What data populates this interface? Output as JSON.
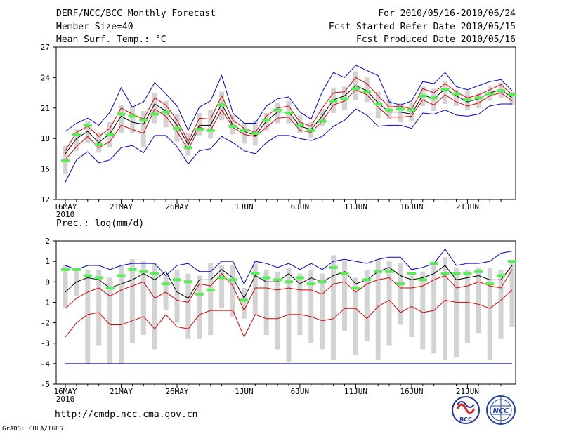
{
  "header": {
    "title": "DERF/NCC/BCC Monthly Forecast",
    "member_size": "Member Size=40",
    "variable": "Mean Surf. Temp.: °C",
    "period": "For 2010/05/16-2010/06/24",
    "started": "Fcst Started Refer Date 2010/05/15",
    "produced": "Fcst Produced Date 2010/05/16"
  },
  "footer": {
    "url": "http://cmdp.ncc.cma.gov.cn",
    "grads": "GrADS: COLA/IGES",
    "logo_bcc": "BCC",
    "logo_ncc": "NCC"
  },
  "colors": {
    "envelope": "#0000dd",
    "inner": "#dd0000",
    "mean": "#000000",
    "box": "#d3d3d3",
    "marker": "#55ee55"
  },
  "chart_data": [
    {
      "type": "line",
      "title": "Mean Surf. Temp.: °C",
      "ylim": [
        12,
        27
      ],
      "yticks": [
        "12",
        "15",
        "18",
        "21",
        "24",
        "27"
      ],
      "xticks": [
        "16MAY",
        "21MAY",
        "26MAY",
        "1JUN",
        "6JUN",
        "11JUN",
        "16JUN",
        "21JUN"
      ],
      "xtick_days": [
        0,
        5,
        10,
        16,
        21,
        26,
        31,
        36
      ],
      "xyear": "2010",
      "days": 40,
      "series": [
        {
          "name": "max",
          "color": "#0000dd",
          "values": [
            18.7,
            19.5,
            20.0,
            19.3,
            20.6,
            23.0,
            21.1,
            21.6,
            23.5,
            22.4,
            21.2,
            18.8,
            21.1,
            21.7,
            24.2,
            20.5,
            19.5,
            19.5,
            21.2,
            21.9,
            22.1,
            20.6,
            19.9,
            22.6,
            24.5,
            24.0,
            25.2,
            24.7,
            24.2,
            21.6,
            21.3,
            21.7,
            23.6,
            23.4,
            24.5,
            23.1,
            22.8,
            23.2,
            23.6,
            23.8,
            22.7
          ]
        },
        {
          "name": "upper",
          "color": "#dd0000",
          "values": [
            16.8,
            18.6,
            19.2,
            18.2,
            19.0,
            21.0,
            20.4,
            19.9,
            22.0,
            21.3,
            19.8,
            17.7,
            20.0,
            19.9,
            22.2,
            19.8,
            19.0,
            18.6,
            20.2,
            21.0,
            21.2,
            19.6,
            19.2,
            21.0,
            22.5,
            22.6,
            24.0,
            23.4,
            22.2,
            21.1,
            21.2,
            20.9,
            22.9,
            22.5,
            23.4,
            22.6,
            22.0,
            22.3,
            22.8,
            23.3,
            22.3
          ]
        },
        {
          "name": "mean",
          "color": "#000000",
          "values": [
            16.5,
            18.0,
            18.7,
            17.6,
            18.5,
            20.2,
            19.6,
            19.4,
            21.4,
            20.7,
            19.3,
            17.4,
            19.3,
            19.3,
            21.4,
            19.3,
            18.7,
            18.3,
            19.7,
            20.6,
            20.6,
            19.2,
            18.9,
            20.2,
            21.8,
            22.2,
            23.2,
            22.7,
            21.5,
            20.6,
            20.6,
            20.4,
            22.3,
            21.9,
            22.9,
            22.2,
            21.6,
            21.9,
            22.5,
            22.8,
            22.0
          ]
        },
        {
          "name": "lower",
          "color": "#dd0000",
          "values": [
            15.9,
            17.2,
            18.2,
            17.1,
            17.7,
            19.3,
            18.9,
            18.5,
            20.9,
            20.2,
            18.7,
            16.9,
            19.1,
            18.8,
            20.8,
            19.1,
            18.4,
            18.2,
            19.1,
            20.0,
            20.1,
            18.8,
            18.6,
            19.7,
            21.3,
            21.7,
            22.8,
            22.3,
            21.1,
            20.1,
            20.1,
            20.2,
            21.8,
            21.3,
            22.3,
            21.6,
            21.2,
            21.5,
            22.2,
            22.5,
            21.7
          ]
        },
        {
          "name": "min",
          "color": "#0000dd",
          "values": [
            13.7,
            15.9,
            16.7,
            15.6,
            15.9,
            17.1,
            17.3,
            16.6,
            18.3,
            18.3,
            17.2,
            15.5,
            16.8,
            17.0,
            18.2,
            17.6,
            16.8,
            16.5,
            17.6,
            18.3,
            18.3,
            18.0,
            17.8,
            18.2,
            19.2,
            19.8,
            20.9,
            20.3,
            19.2,
            19.3,
            19.3,
            19.0,
            20.5,
            20.4,
            20.8,
            20.3,
            20.2,
            20.4,
            21.2,
            21.4,
            21.4
          ]
        },
        {
          "name": "box_high",
          "color": "#d3d3d3",
          "values": [
            17.3,
            18.9,
            19.7,
            18.6,
            19.6,
            21.3,
            21.1,
            20.7,
            22.5,
            21.7,
            20.4,
            18.5,
            20.5,
            20.8,
            22.6,
            20.3,
            19.5,
            19.8,
            20.5,
            21.5,
            21.7,
            20.3,
            19.6,
            20.9,
            23.0,
            23.1,
            24.6,
            24.0,
            22.6,
            21.9,
            21.5,
            21.5,
            23.1,
            22.9,
            23.7,
            22.8,
            22.7,
            22.5,
            23.2,
            23.5,
            22.6
          ]
        },
        {
          "name": "box_low",
          "color": "#d3d3d3",
          "values": [
            14.5,
            16.8,
            17.6,
            16.6,
            17.1,
            18.5,
            18.5,
            17.1,
            19.5,
            19.1,
            17.7,
            16.3,
            18.3,
            18.0,
            19.8,
            18.4,
            17.5,
            17.3,
            18.7,
            19.5,
            19.5,
            18.5,
            18.0,
            19.2,
            20.5,
            20.8,
            21.8,
            21.6,
            20.0,
            19.9,
            19.6,
            19.7,
            21.2,
            20.7,
            21.4,
            21.2,
            20.8,
            21.0,
            21.7,
            22.0,
            21.3
          ]
        },
        {
          "name": "observed_marker",
          "color": "#55ee55",
          "values": [
            15.8,
            18.4,
            19.3,
            17.4,
            18.4,
            20.4,
            20.2,
            19.8,
            20.4,
            20.6,
            19.0,
            17.1,
            18.9,
            18.8,
            21.3,
            19.2,
            18.8,
            18.5,
            19.8,
            20.8,
            20.5,
            19.3,
            18.8,
            19.7,
            21.7,
            21.9,
            22.9,
            22.6,
            21.4,
            20.8,
            20.9,
            20.8,
            22.2,
            22.0,
            22.8,
            22.4,
            21.8,
            22.0,
            22.4,
            22.7,
            22.3
          ]
        }
      ]
    },
    {
      "type": "line",
      "title": "Prec.: log(mm/d)",
      "ylim": [
        -5,
        2
      ],
      "yticks": [
        "-5",
        "-4",
        "-3",
        "-2",
        "-1",
        "0",
        "1",
        "2"
      ],
      "xticks": [
        "16MAY",
        "21MAY",
        "26MAY",
        "1JUN",
        "6JUN",
        "11JUN",
        "16JUN",
        "21JUN"
      ],
      "xtick_days": [
        0,
        5,
        10,
        16,
        21,
        26,
        31,
        36
      ],
      "xyear": "2010",
      "days": 40,
      "series": [
        {
          "name": "max",
          "color": "#0000dd",
          "values": [
            0.8,
            0.6,
            0.8,
            0.8,
            0.6,
            0.8,
            0.9,
            0.9,
            0.9,
            0.3,
            0.8,
            0.9,
            0.5,
            0.5,
            1.0,
            1.0,
            -0.1,
            1.0,
            0.9,
            0.7,
            0.9,
            0.6,
            0.9,
            0.6,
            1.0,
            1.1,
            1.0,
            0.9,
            1.1,
            1.2,
            1.2,
            0.6,
            0.7,
            0.9,
            1.6,
            0.8,
            0.9,
            0.9,
            1.0,
            1.4,
            1.5
          ]
        },
        {
          "name": "mean",
          "color": "#000000",
          "values": [
            -0.5,
            0.0,
            0.2,
            0.1,
            -0.3,
            -0.1,
            0.1,
            0.4,
            0.1,
            0.5,
            -0.5,
            -0.8,
            0.1,
            0.1,
            0.6,
            0.2,
            -0.8,
            0.3,
            0.0,
            0.0,
            0.4,
            -0.1,
            0.2,
            0.0,
            0.3,
            0.5,
            -0.1,
            0.1,
            0.5,
            0.7,
            0.3,
            0.1,
            0.2,
            0.4,
            0.8,
            0.1,
            0.2,
            0.3,
            0.1,
            0.1,
            0.8
          ]
        },
        {
          "name": "upper",
          "color": "#dd0000",
          "values": [
            -1.3,
            -0.8,
            -0.5,
            -0.3,
            -0.7,
            -0.4,
            -0.2,
            0.0,
            -0.8,
            -0.5,
            -0.9,
            -1.0,
            -0.1,
            -0.2,
            0.4,
            -0.2,
            -1.4,
            -0.3,
            -0.3,
            -0.4,
            -0.3,
            -0.4,
            -0.4,
            -0.6,
            -0.1,
            0.0,
            -0.5,
            -0.1,
            0.1,
            0.2,
            -0.3,
            -0.3,
            -0.2,
            0.1,
            0.3,
            -0.3,
            -0.2,
            0.0,
            -0.2,
            -0.3,
            0.6
          ]
        },
        {
          "name": "lower",
          "color": "#dd0000",
          "values": [
            -2.7,
            -2.0,
            -1.6,
            -1.5,
            -2.1,
            -2.1,
            -1.9,
            -1.7,
            -2.3,
            -1.6,
            -2.2,
            -2.3,
            -1.6,
            -1.4,
            -1.4,
            -1.4,
            -2.7,
            -1.6,
            -1.8,
            -1.8,
            -1.6,
            -1.6,
            -1.7,
            -1.9,
            -1.8,
            -1.3,
            -1.3,
            -1.8,
            -1.2,
            -0.9,
            -1.5,
            -1.2,
            -1.5,
            -1.4,
            -0.9,
            -1.0,
            -1.0,
            -1.1,
            -1.3,
            -0.9,
            -0.4
          ]
        },
        {
          "name": "floor",
          "color": "#0000dd",
          "values": [
            -4.0,
            -4.0,
            -4.0,
            -4.0,
            -4.0,
            -4.0,
            -4.0,
            -4.0,
            -4.0,
            -4.0,
            -4.0,
            -4.0,
            -4.0,
            -4.0,
            -4.0,
            -4.0,
            -4.0,
            -4.0,
            -4.0,
            -4.0,
            -4.0,
            -4.0,
            -4.0,
            -4.0,
            -4.0,
            -4.0,
            -4.0,
            -4.0,
            -4.0,
            -4.0,
            -4.0,
            -4.0,
            -4.0,
            -4.0,
            -4.0,
            -4.0,
            -4.0,
            -4.0,
            -4.0,
            -4.0,
            -4.0
          ]
        },
        {
          "name": "box_high",
          "color": "#d3d3d3",
          "values": [
            0.8,
            0.7,
            0.6,
            0.6,
            0.2,
            0.8,
            1.1,
            1.0,
            0.9,
            0.3,
            0.6,
            0.4,
            0.3,
            0.9,
            0.8,
            0.8,
            -0.3,
            0.9,
            0.6,
            0.5,
            0.7,
            0.4,
            0.6,
            0.4,
            1.3,
            1.0,
            0.2,
            0.6,
            1.1,
            1.0,
            0.9,
            0.3,
            0.5,
            0.8,
            1.2,
            0.7,
            0.6,
            0.7,
            0.7,
            0.6,
            1.0
          ]
        },
        {
          "name": "box_low",
          "color": "#d3d3d3",
          "values": [
            -1.3,
            -0.7,
            -4.0,
            -3.1,
            -4.0,
            -4.0,
            -3.0,
            -2.6,
            -3.3,
            -1.4,
            -2.0,
            -2.8,
            -2.8,
            -2.6,
            -1.3,
            -1.7,
            -1.8,
            -1.6,
            -2.6,
            -3.3,
            -3.9,
            -2.6,
            -3.0,
            -3.3,
            -3.8,
            -2.4,
            -3.6,
            -2.9,
            -3.8,
            -3.1,
            -2.1,
            -2.7,
            -3.3,
            -3.5,
            -3.8,
            -3.7,
            -3.0,
            -2.5,
            -3.8,
            -2.8,
            -2.2
          ]
        },
        {
          "name": "observed_marker",
          "color": "#55ee55",
          "values": [
            0.6,
            0.6,
            0.3,
            0.2,
            -0.3,
            0.3,
            0.6,
            0.5,
            0.4,
            -0.1,
            0.1,
            0.0,
            -0.6,
            -0.4,
            0.2,
            0.1,
            -0.9,
            0.4,
            0.2,
            0.1,
            0.0,
            0.2,
            -0.1,
            0.0,
            0.7,
            0.4,
            -0.3,
            0.1,
            0.5,
            0.5,
            -0.1,
            0.4,
            0.1,
            0.9,
            0.4,
            0.4,
            0.4,
            0.5,
            -0.1,
            0.3,
            1.0
          ]
        }
      ]
    }
  ]
}
